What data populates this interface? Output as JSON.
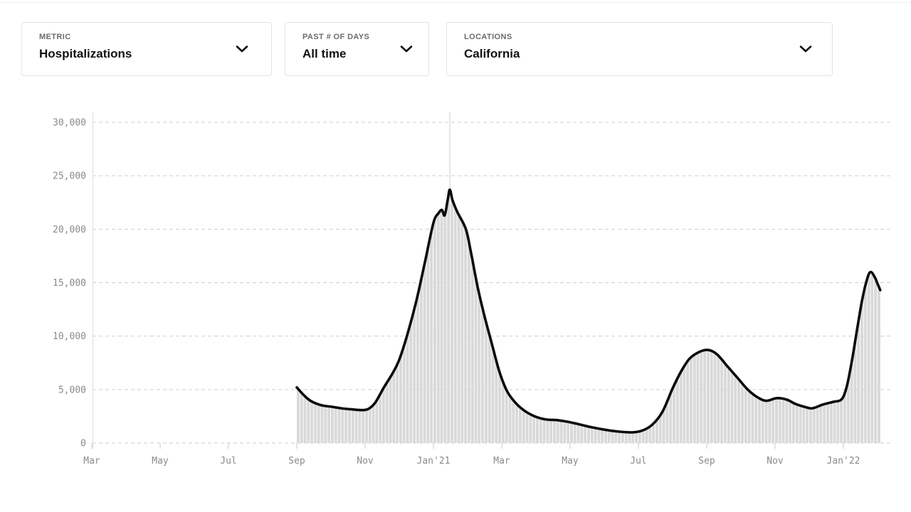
{
  "filters": [
    {
      "label": "METRIC",
      "value": "Hospitalizations"
    },
    {
      "label": "PAST # OF DAYS",
      "value": "All time"
    },
    {
      "label": "LOCATIONS",
      "value": "California"
    }
  ],
  "chart_data": {
    "type": "area",
    "title": "",
    "metric": "Hospitalizations",
    "location": "California",
    "legend": "none",
    "grid": "dashed horizontal lines",
    "x_axis": {
      "unit": "months since Mar 2020",
      "range": [
        0,
        23.38
      ],
      "tick_positions": [
        0,
        2,
        4,
        6,
        8,
        10,
        12,
        14,
        16,
        18,
        20,
        22
      ],
      "tick_labels": [
        "Mar",
        "May",
        "Jul",
        "Sep",
        "Nov",
        "Jan'21",
        "Mar",
        "May",
        "Jul",
        "Sep",
        "Nov",
        "Jan'22"
      ]
    },
    "y_axis": {
      "range": [
        0,
        30000
      ],
      "tick_interval": 5000,
      "tick_labels": [
        "0",
        "5,000",
        "10,000",
        "15,000",
        "20,000",
        "25,000",
        "30,000"
      ]
    },
    "peak_marker": {
      "x": 10.48,
      "value": 23700
    },
    "series": [
      {
        "name": "Hospitalizations",
        "points": [
          [
            6.0,
            5200
          ],
          [
            6.2,
            4500
          ],
          [
            6.4,
            3950
          ],
          [
            6.7,
            3550
          ],
          [
            7.0,
            3400
          ],
          [
            7.3,
            3250
          ],
          [
            7.6,
            3150
          ],
          [
            7.9,
            3080
          ],
          [
            8.1,
            3200
          ],
          [
            8.3,
            3800
          ],
          [
            8.55,
            5200
          ],
          [
            8.8,
            6500
          ],
          [
            9.0,
            7800
          ],
          [
            9.25,
            10300
          ],
          [
            9.5,
            13300
          ],
          [
            9.75,
            16900
          ],
          [
            10.0,
            20600
          ],
          [
            10.15,
            21500
          ],
          [
            10.25,
            21800
          ],
          [
            10.33,
            21300
          ],
          [
            10.42,
            22800
          ],
          [
            10.48,
            23700
          ],
          [
            10.56,
            22700
          ],
          [
            10.7,
            21600
          ],
          [
            10.95,
            20000
          ],
          [
            11.1,
            17800
          ],
          [
            11.3,
            14500
          ],
          [
            11.5,
            11800
          ],
          [
            11.7,
            9400
          ],
          [
            11.9,
            7000
          ],
          [
            12.05,
            5600
          ],
          [
            12.2,
            4600
          ],
          [
            12.45,
            3600
          ],
          [
            12.7,
            2950
          ],
          [
            13.0,
            2450
          ],
          [
            13.3,
            2200
          ],
          [
            13.6,
            2150
          ],
          [
            13.9,
            2000
          ],
          [
            14.2,
            1800
          ],
          [
            14.6,
            1500
          ],
          [
            15.0,
            1250
          ],
          [
            15.4,
            1080
          ],
          [
            15.8,
            1000
          ],
          [
            16.1,
            1150
          ],
          [
            16.4,
            1700
          ],
          [
            16.7,
            2900
          ],
          [
            17.0,
            5100
          ],
          [
            17.25,
            6700
          ],
          [
            17.5,
            7900
          ],
          [
            17.8,
            8550
          ],
          [
            18.05,
            8700
          ],
          [
            18.3,
            8300
          ],
          [
            18.6,
            7200
          ],
          [
            18.9,
            6100
          ],
          [
            19.2,
            5000
          ],
          [
            19.5,
            4250
          ],
          [
            19.75,
            3950
          ],
          [
            20.05,
            4200
          ],
          [
            20.35,
            4050
          ],
          [
            20.6,
            3650
          ],
          [
            20.9,
            3350
          ],
          [
            21.1,
            3250
          ],
          [
            21.4,
            3600
          ],
          [
            21.7,
            3850
          ],
          [
            21.95,
            4100
          ],
          [
            22.1,
            5300
          ],
          [
            22.25,
            7700
          ],
          [
            22.4,
            10600
          ],
          [
            22.55,
            13400
          ],
          [
            22.7,
            15400
          ],
          [
            22.8,
            16000
          ],
          [
            22.92,
            15500
          ],
          [
            23.0,
            14900
          ],
          [
            23.08,
            14300
          ]
        ]
      }
    ],
    "colors": {
      "line": "#0b0b0b",
      "fill": "#d9d9d9",
      "fill_gap": "#ffffff",
      "grid": "#cfcfcf",
      "axis_line": "#dcdcdc",
      "tick": "#c9c9c9",
      "marker_line": "#cccccc",
      "axis_text": "#8a8a8a"
    }
  }
}
